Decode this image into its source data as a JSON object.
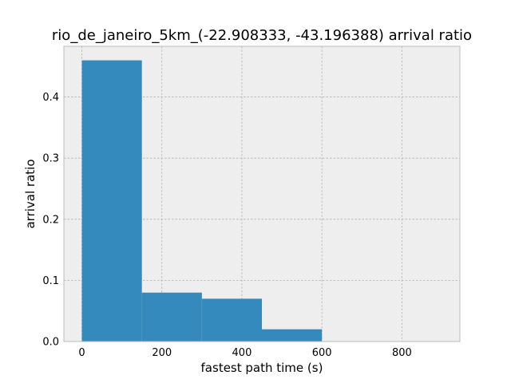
{
  "chart_data": {
    "type": "bar",
    "title": "rio_de_janeiro_5km_(-22.908333, -43.196388) arrival ratio",
    "xlabel": "fastest path time (s)",
    "ylabel": "arrival ratio",
    "bins": [
      {
        "x_start": 0,
        "x_end": 150,
        "value": 0.46
      },
      {
        "x_start": 150,
        "x_end": 300,
        "value": 0.08
      },
      {
        "x_start": 300,
        "x_end": 450,
        "value": 0.07
      },
      {
        "x_start": 450,
        "x_end": 600,
        "value": 0.02
      }
    ],
    "xlim": [
      -45,
      945
    ],
    "ylim": [
      0,
      0.483
    ],
    "x_ticks": [
      0,
      200,
      400,
      600,
      800
    ],
    "x_tick_labels": [
      "0",
      "200",
      "400",
      "600",
      "800"
    ],
    "y_ticks": [
      0.0,
      0.1,
      0.2,
      0.3,
      0.4
    ],
    "y_tick_labels": [
      "0.0",
      "0.1",
      "0.2",
      "0.3",
      "0.4"
    ],
    "grid": true,
    "colors": {
      "bar": "#348abd",
      "plot_background": "#eeeeee",
      "grid": "#b2b2b2",
      "axes_edge": "#bcbcbc"
    }
  }
}
